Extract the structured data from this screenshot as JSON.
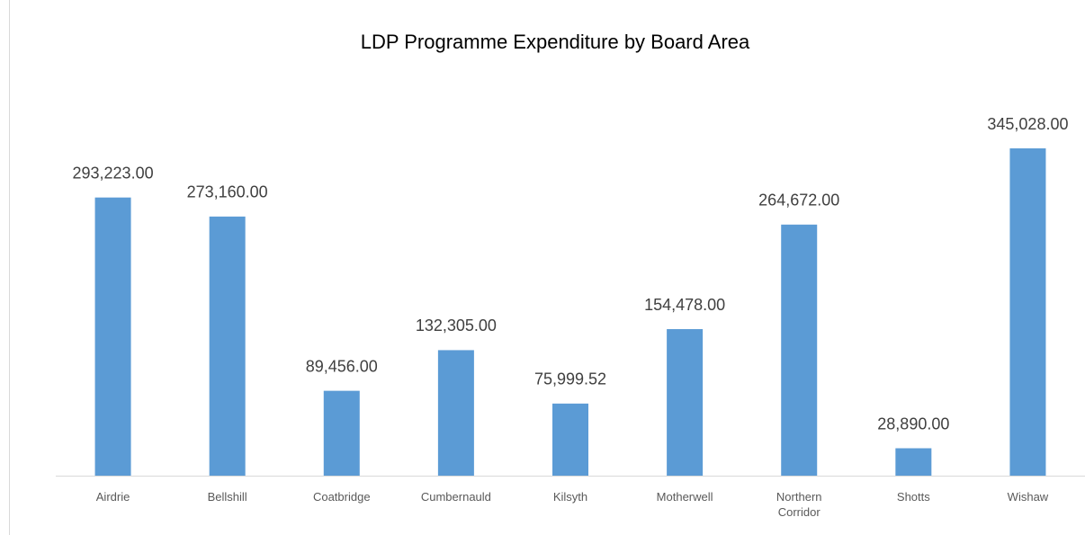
{
  "chart_data": {
    "type": "bar",
    "title": "LDP Programme Expenditure by Board Area",
    "categories": [
      "Airdrie",
      "Bellshill",
      "Coatbridge",
      "Cumbernauld",
      "Kilsyth",
      "Motherwell",
      "Northern Corridor",
      "Shotts",
      "Wishaw"
    ],
    "values": [
      293223,
      273160,
      89456,
      132305,
      75999.52,
      154478,
      264672,
      28890,
      345028
    ],
    "value_labels": [
      "293,223.00",
      "273,160.00",
      "89,456.00",
      "132,305.00",
      "75,999.52",
      "154,478.00",
      "264,672.00",
      "28,890.00",
      "345,028.00"
    ],
    "color": "#5b9bd5"
  }
}
